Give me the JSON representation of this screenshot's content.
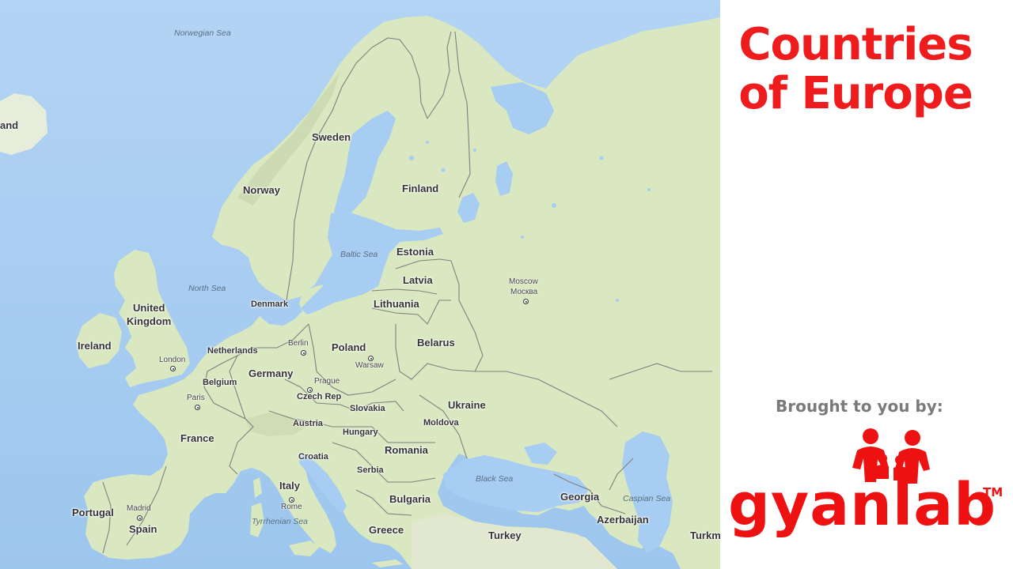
{
  "map": {
    "countries": {
      "sweden": "Sweden",
      "norway": "Norway",
      "finland": "Finland",
      "estonia": "Estonia",
      "latvia": "Latvia",
      "lithuania": "Lithuania",
      "denmark": "Denmark",
      "united_kingdom_line1": "United",
      "united_kingdom_line2": "Kingdom",
      "ireland": "Ireland",
      "netherlands": "Netherlands",
      "belgium": "Belgium",
      "germany": "Germany",
      "poland": "Poland",
      "belarus": "Belarus",
      "czech_rep": "Czech Rep",
      "slovakia": "Slovakia",
      "ukraine": "Ukraine",
      "austria": "Austria",
      "hungary": "Hungary",
      "moldova": "Moldova",
      "france": "France",
      "croatia": "Croatia",
      "romania": "Romania",
      "serbia": "Serbia",
      "italy": "Italy",
      "bulgaria": "Bulgaria",
      "portugal": "Portugal",
      "spain": "Spain",
      "greece": "Greece",
      "turkey": "Turkey",
      "georgia": "Georgia",
      "azerbaijan": "Azerbaijan",
      "iceland_partial": "and",
      "turkmenistan_partial": "Turkm"
    },
    "cities": {
      "moscow_en": "Moscow",
      "moscow_ru": "Москва",
      "berlin": "Berlin",
      "warsaw": "Warsaw",
      "london": "London",
      "prague": "Prague",
      "paris": "Paris",
      "madrid": "Madrid",
      "rome": "Rome"
    },
    "seas": {
      "norwegian_sea": "Norwegian Sea",
      "baltic_sea": "Baltic Sea",
      "north_sea": "North Sea",
      "black_sea": "Black Sea",
      "caspian_sea": "Caspian Sea",
      "tyrrhenian_sea": "Tyrrhenian Sea"
    },
    "colors": {
      "water": "#a7cdf2",
      "land": "#d9e8c0",
      "border": "#7d7d7d"
    }
  },
  "panel": {
    "title_line1": "Countries",
    "title_line2": "of Europe",
    "brought_by": "Brought to you by:",
    "logo_text": "gyanlab",
    "logo_tm": "TM",
    "colors": {
      "title": "#ee1c1c",
      "brought": "#7a7a7a",
      "logo": "#ee1111"
    }
  }
}
